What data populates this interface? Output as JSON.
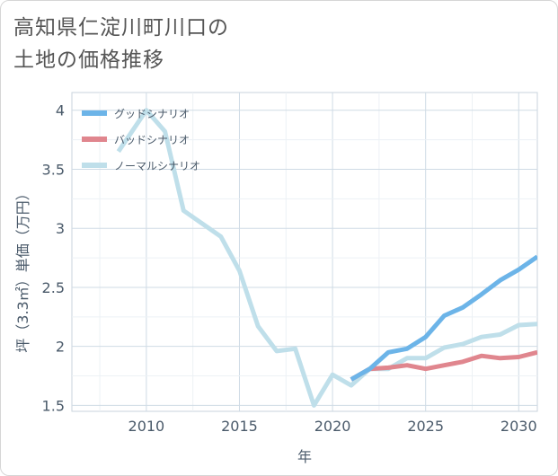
{
  "title_lines": [
    "高知県仁淀川町川口の",
    "土地の価格推移"
  ],
  "chart_data": {
    "type": "line",
    "xlabel": "年",
    "ylabel": "坪（3.3㎡）単価（万円）",
    "xlim": [
      2006,
      2031
    ],
    "ylim": [
      1.45,
      4.15
    ],
    "xticks": [
      2010,
      2015,
      2020,
      2025,
      2030
    ],
    "yticks": [
      1.5,
      2,
      2.5,
      3,
      3.5,
      4
    ],
    "ytick_labels": [
      "1.5",
      "2",
      "2.5",
      "3",
      "3.5",
      "4"
    ],
    "grid": true,
    "legend_position": "top-left",
    "series": [
      {
        "name": "グッドシナリオ",
        "color": "#6cb4e8",
        "x": [
          2021,
          2022,
          2023,
          2024,
          2025,
          2026,
          2027,
          2028,
          2029,
          2030,
          2031
        ],
        "y": [
          1.72,
          1.81,
          1.95,
          1.98,
          2.08,
          2.26,
          2.33,
          2.44,
          2.56,
          2.65,
          2.76
        ]
      },
      {
        "name": "バッドシナリオ",
        "color": "#e0868e",
        "x": [
          2021,
          2022,
          2023,
          2024,
          2025,
          2026,
          2027,
          2028,
          2029,
          2030,
          2031
        ],
        "y": [
          1.72,
          1.81,
          1.82,
          1.84,
          1.81,
          1.84,
          1.87,
          1.92,
          1.9,
          1.91,
          1.95
        ]
      },
      {
        "name": "ノーマルシナリオ",
        "color": "#bfdfea",
        "x": [
          2008.5,
          2010,
          2011,
          2012,
          2013,
          2014,
          2015,
          2016,
          2017,
          2018,
          2019,
          2020,
          2021,
          2022,
          2023,
          2024,
          2025,
          2026,
          2027,
          2028,
          2029,
          2030,
          2031
        ],
        "y": [
          3.65,
          4.0,
          3.82,
          3.15,
          3.04,
          2.93,
          2.64,
          2.17,
          1.96,
          1.98,
          1.5,
          1.76,
          1.67,
          1.81,
          1.81,
          1.9,
          1.9,
          1.99,
          2.02,
          2.08,
          2.1,
          2.18,
          2.19
        ]
      }
    ]
  }
}
